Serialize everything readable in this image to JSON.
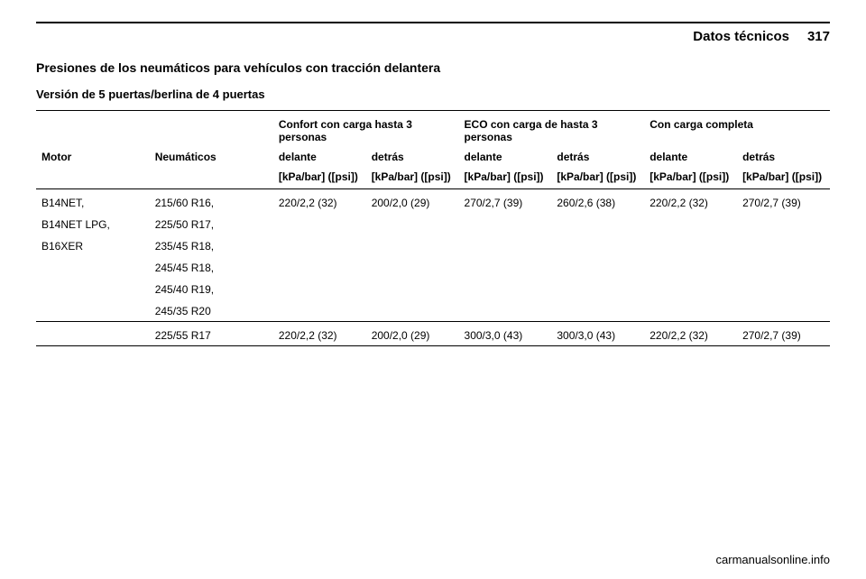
{
  "header": {
    "section": "Datos técnicos",
    "page_number": "317"
  },
  "titles": {
    "main": "Presiones de los neumáticos para vehículos con tracción delantera",
    "sub": "Versión de 5 puertas/berlina de 4 puertas"
  },
  "table": {
    "groups": [
      {
        "label": "Confort con carga hasta 3 personas",
        "span": 2
      },
      {
        "label": "ECO con carga de hasta 3 personas",
        "span": 2
      },
      {
        "label": "Con carga completa",
        "span": 2
      }
    ],
    "columns": {
      "motor": "Motor",
      "neumaticos": "Neumáticos",
      "front": "delante",
      "rear": "detrás",
      "unit": "[kPa/bar] ([psi])"
    },
    "rows": [
      {
        "motors": [
          "B14NET,",
          "B14NET LPG,",
          "B16XER"
        ],
        "tires": [
          "215/60 R16,",
          "225/50 R17,",
          "235/45 R18,",
          "245/45 R18,",
          "245/40 R19,",
          "245/35 R20"
        ],
        "values": [
          "220/2,2 (32)",
          "200/2,0 (29)",
          "270/2,7 (39)",
          "260/2,6 (38)",
          "220/2,2 (32)",
          "270/2,7 (39)"
        ]
      },
      {
        "motors": [],
        "tires": [
          "225/55 R17"
        ],
        "values": [
          "220/2,2 (32)",
          "200/2,0 (29)",
          "300/3,0 (43)",
          "300/3,0 (43)",
          "220/2,2 (32)",
          "270/2,7 (39)"
        ]
      }
    ]
  },
  "footer": {
    "url": "carmanualsonline.info"
  }
}
